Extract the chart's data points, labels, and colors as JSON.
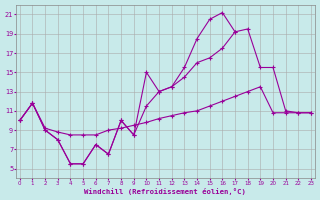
{
  "bg_color": "#c8eaea",
  "line_color": "#990099",
  "grid_color": "#aaaaaa",
  "xlabel": "Windchill (Refroidissement éolien,°C)",
  "xlim": [
    -0.3,
    23.3
  ],
  "ylim": [
    4,
    22
  ],
  "yticks": [
    5,
    7,
    9,
    11,
    13,
    15,
    17,
    19,
    21
  ],
  "xticks": [
    0,
    1,
    2,
    3,
    4,
    5,
    6,
    7,
    8,
    9,
    10,
    11,
    12,
    13,
    14,
    15,
    16,
    17,
    18,
    19,
    20,
    21,
    22,
    23
  ],
  "lines": [
    {
      "x": [
        0,
        1,
        2,
        3,
        4,
        5,
        6,
        7,
        8,
        9,
        10,
        11,
        12,
        13,
        14,
        15,
        16,
        17
      ],
      "y": [
        10.0,
        11.8,
        9.0,
        8.0,
        5.5,
        5.5,
        7.5,
        6.5,
        10.0,
        8.5,
        15.0,
        13.0,
        13.5,
        15.5,
        18.5,
        20.5,
        21.2,
        19.2
      ]
    },
    {
      "x": [
        0,
        1,
        2,
        3,
        4,
        5,
        6,
        7,
        8,
        9,
        10,
        11,
        12,
        13,
        14,
        15,
        16,
        17,
        18,
        19,
        20,
        21,
        22,
        23
      ],
      "y": [
        10.0,
        11.8,
        9.0,
        8.0,
        5.5,
        5.5,
        7.5,
        6.5,
        10.0,
        8.5,
        11.5,
        13.0,
        13.5,
        14.5,
        16.0,
        16.5,
        17.5,
        19.2,
        19.5,
        15.5,
        15.5,
        11.0,
        10.8,
        10.8
      ]
    },
    {
      "x": [
        0,
        1,
        2,
        3,
        4,
        5,
        6,
        7,
        8,
        9,
        10,
        11,
        12,
        13,
        14,
        15,
        16,
        17,
        18,
        19,
        20,
        21,
        22,
        23
      ],
      "y": [
        10.0,
        11.8,
        9.2,
        8.8,
        8.5,
        8.5,
        8.5,
        9.0,
        9.2,
        9.5,
        9.8,
        10.2,
        10.5,
        10.8,
        11.0,
        11.5,
        12.0,
        12.5,
        13.0,
        13.5,
        10.8,
        10.8,
        10.8,
        10.8
      ]
    }
  ]
}
